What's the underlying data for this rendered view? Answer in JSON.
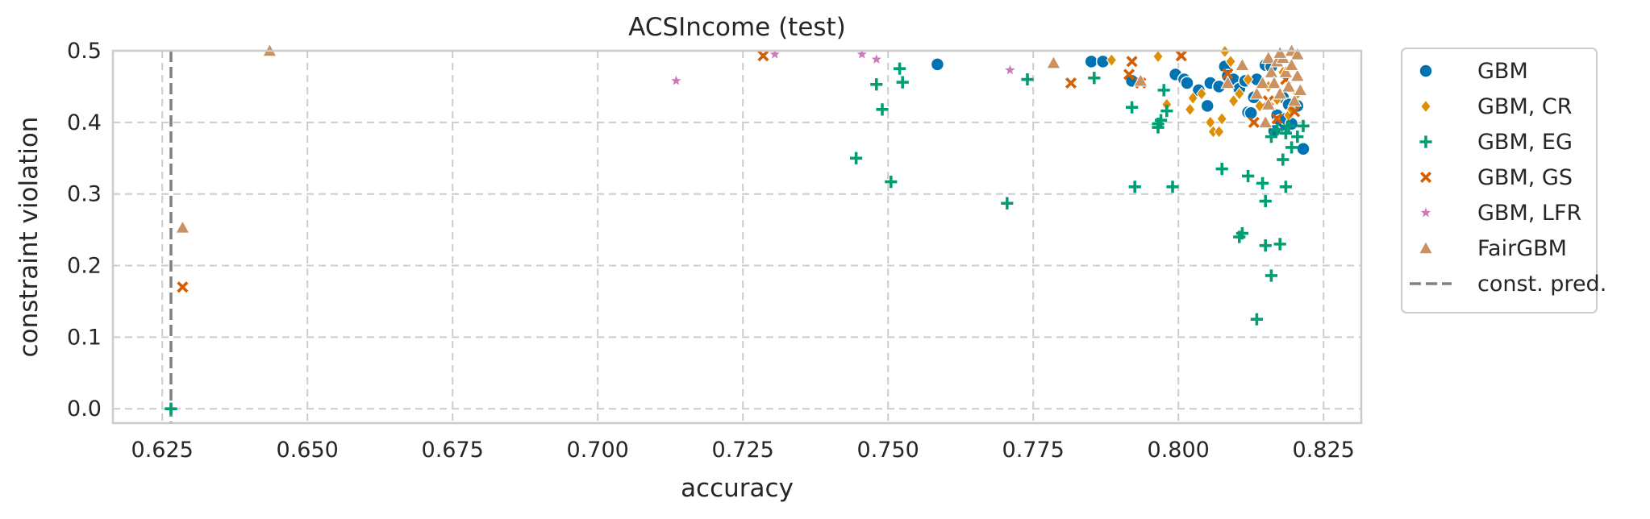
{
  "chart_data": {
    "type": "scatter",
    "title": "ACSIncome (test)",
    "xlabel": "accuracy",
    "ylabel": "constraint violation",
    "xlim": [
      0.6165,
      0.8315
    ],
    "ylim": [
      -0.02,
      0.5
    ],
    "xticks": [
      {
        "value": 0.625,
        "label": "0.625"
      },
      {
        "value": 0.65,
        "label": "0.650"
      },
      {
        "value": 0.675,
        "label": "0.675"
      },
      {
        "value": 0.7,
        "label": "0.700"
      },
      {
        "value": 0.725,
        "label": "0.725"
      },
      {
        "value": 0.75,
        "label": "0.750"
      },
      {
        "value": 0.775,
        "label": "0.775"
      },
      {
        "value": 0.8,
        "label": "0.800"
      },
      {
        "value": 0.825,
        "label": "0.825"
      }
    ],
    "yticks": [
      {
        "value": 0.0,
        "label": "0.0"
      },
      {
        "value": 0.1,
        "label": "0.1"
      },
      {
        "value": 0.2,
        "label": "0.2"
      },
      {
        "value": 0.3,
        "label": "0.3"
      },
      {
        "value": 0.4,
        "label": "0.4"
      },
      {
        "value": 0.5,
        "label": "0.5"
      }
    ],
    "grid": true,
    "legend_position": "outside-right",
    "const_pred": {
      "name": "const. pred.",
      "x": 0.6265,
      "color": "#808080",
      "style": "dashed"
    },
    "series": [
      {
        "name": "GBM",
        "marker": "circle",
        "color": "#0173b2",
        "points": [
          [
            0.7585,
            0.481
          ],
          [
            0.785,
            0.485
          ],
          [
            0.787,
            0.485
          ],
          [
            0.792,
            0.458
          ],
          [
            0.7995,
            0.467
          ],
          [
            0.801,
            0.46
          ],
          [
            0.8015,
            0.455
          ],
          [
            0.8035,
            0.445
          ],
          [
            0.805,
            0.423
          ],
          [
            0.8055,
            0.455
          ],
          [
            0.807,
            0.45
          ],
          [
            0.808,
            0.478
          ],
          [
            0.8085,
            0.465
          ],
          [
            0.8095,
            0.46
          ],
          [
            0.8105,
            0.447
          ],
          [
            0.8115,
            0.458
          ],
          [
            0.812,
            0.414
          ],
          [
            0.8125,
            0.413
          ],
          [
            0.813,
            0.435
          ],
          [
            0.8135,
            0.46
          ],
          [
            0.815,
            0.48
          ],
          [
            0.816,
            0.478
          ],
          [
            0.817,
            0.41
          ],
          [
            0.8175,
            0.402
          ],
          [
            0.8175,
            0.395
          ],
          [
            0.818,
            0.435
          ],
          [
            0.8185,
            0.405
          ],
          [
            0.819,
            0.425
          ],
          [
            0.8195,
            0.398
          ],
          [
            0.8205,
            0.423
          ],
          [
            0.8215,
            0.363
          ],
          [
            0.8165,
            0.388
          ]
        ]
      },
      {
        "name": "GBM, CR",
        "marker": "diamond",
        "color": "#de8f05",
        "points": [
          [
            0.6435,
            0.5
          ],
          [
            0.7885,
            0.487
          ],
          [
            0.7965,
            0.492
          ],
          [
            0.798,
            0.425
          ],
          [
            0.802,
            0.418
          ],
          [
            0.8025,
            0.434
          ],
          [
            0.804,
            0.44
          ],
          [
            0.8055,
            0.4
          ],
          [
            0.806,
            0.387
          ],
          [
            0.807,
            0.387
          ],
          [
            0.8075,
            0.405
          ],
          [
            0.808,
            0.499
          ],
          [
            0.809,
            0.485
          ],
          [
            0.8095,
            0.43
          ],
          [
            0.8105,
            0.44
          ],
          [
            0.812,
            0.46
          ],
          [
            0.814,
            0.423
          ],
          [
            0.8155,
            0.45
          ],
          [
            0.817,
            0.432
          ],
          [
            0.818,
            0.47
          ],
          [
            0.819,
            0.41
          ],
          [
            0.8195,
            0.418
          ],
          [
            0.8205,
            0.44
          ]
        ]
      },
      {
        "name": "GBM, EG",
        "marker": "plus",
        "color": "#029e73",
        "points": [
          [
            0.6265,
            0.0
          ],
          [
            0.7445,
            0.35
          ],
          [
            0.748,
            0.453
          ],
          [
            0.749,
            0.418
          ],
          [
            0.7505,
            0.317
          ],
          [
            0.752,
            0.475
          ],
          [
            0.7525,
            0.456
          ],
          [
            0.7705,
            0.287
          ],
          [
            0.774,
            0.46
          ],
          [
            0.7855,
            0.462
          ],
          [
            0.792,
            0.421
          ],
          [
            0.7925,
            0.31
          ],
          [
            0.7965,
            0.393
          ],
          [
            0.7965,
            0.398
          ],
          [
            0.797,
            0.403
          ],
          [
            0.7975,
            0.445
          ],
          [
            0.798,
            0.416
          ],
          [
            0.799,
            0.31
          ],
          [
            0.8075,
            0.335
          ],
          [
            0.8105,
            0.24
          ],
          [
            0.811,
            0.245
          ],
          [
            0.812,
            0.325
          ],
          [
            0.8135,
            0.125
          ],
          [
            0.8145,
            0.315
          ],
          [
            0.815,
            0.228
          ],
          [
            0.815,
            0.29
          ],
          [
            0.816,
            0.186
          ],
          [
            0.816,
            0.38
          ],
          [
            0.817,
            0.39
          ],
          [
            0.8175,
            0.23
          ],
          [
            0.818,
            0.348
          ],
          [
            0.8185,
            0.385
          ],
          [
            0.8185,
            0.31
          ],
          [
            0.819,
            0.395
          ],
          [
            0.8195,
            0.365
          ],
          [
            0.8205,
            0.38
          ],
          [
            0.8215,
            0.395
          ]
        ]
      },
      {
        "name": "GBM, GS",
        "marker": "x",
        "color": "#d55e00",
        "points": [
          [
            0.6285,
            0.17
          ],
          [
            0.7285,
            0.493
          ],
          [
            0.7815,
            0.455
          ],
          [
            0.7915,
            0.467
          ],
          [
            0.792,
            0.485
          ],
          [
            0.7935,
            0.455
          ],
          [
            0.8005,
            0.493
          ],
          [
            0.8085,
            0.468
          ],
          [
            0.813,
            0.4
          ],
          [
            0.8155,
            0.43
          ],
          [
            0.817,
            0.405
          ],
          [
            0.8185,
            0.46
          ],
          [
            0.82,
            0.415
          ]
        ]
      },
      {
        "name": "GBM, LFR",
        "marker": "star",
        "color": "#cc78bc",
        "points": [
          [
            0.7135,
            0.458
          ],
          [
            0.7305,
            0.495
          ],
          [
            0.7455,
            0.495
          ],
          [
            0.748,
            0.488
          ],
          [
            0.771,
            0.473
          ]
        ]
      },
      {
        "name": "FairGBM",
        "marker": "triangle",
        "color": "#ca9161",
        "points": [
          [
            0.6285,
            0.253
          ],
          [
            0.6435,
            0.5
          ],
          [
            0.7785,
            0.483
          ],
          [
            0.7935,
            0.458
          ],
          [
            0.8085,
            0.455
          ],
          [
            0.811,
            0.48
          ],
          [
            0.8135,
            0.44
          ],
          [
            0.8145,
            0.455
          ],
          [
            0.815,
            0.4
          ],
          [
            0.8155,
            0.49
          ],
          [
            0.816,
            0.47
          ],
          [
            0.8165,
            0.455
          ],
          [
            0.817,
            0.485
          ],
          [
            0.8175,
            0.44
          ],
          [
            0.818,
            0.49
          ],
          [
            0.8185,
            0.47
          ],
          [
            0.819,
            0.45
          ],
          [
            0.8195,
            0.5
          ],
          [
            0.82,
            0.43
          ],
          [
            0.8205,
            0.495
          ],
          [
            0.8205,
            0.465
          ],
          [
            0.821,
            0.445
          ],
          [
            0.8155,
            0.425
          ],
          [
            0.8175,
            0.497
          ],
          [
            0.8195,
            0.48
          ]
        ]
      }
    ]
  }
}
